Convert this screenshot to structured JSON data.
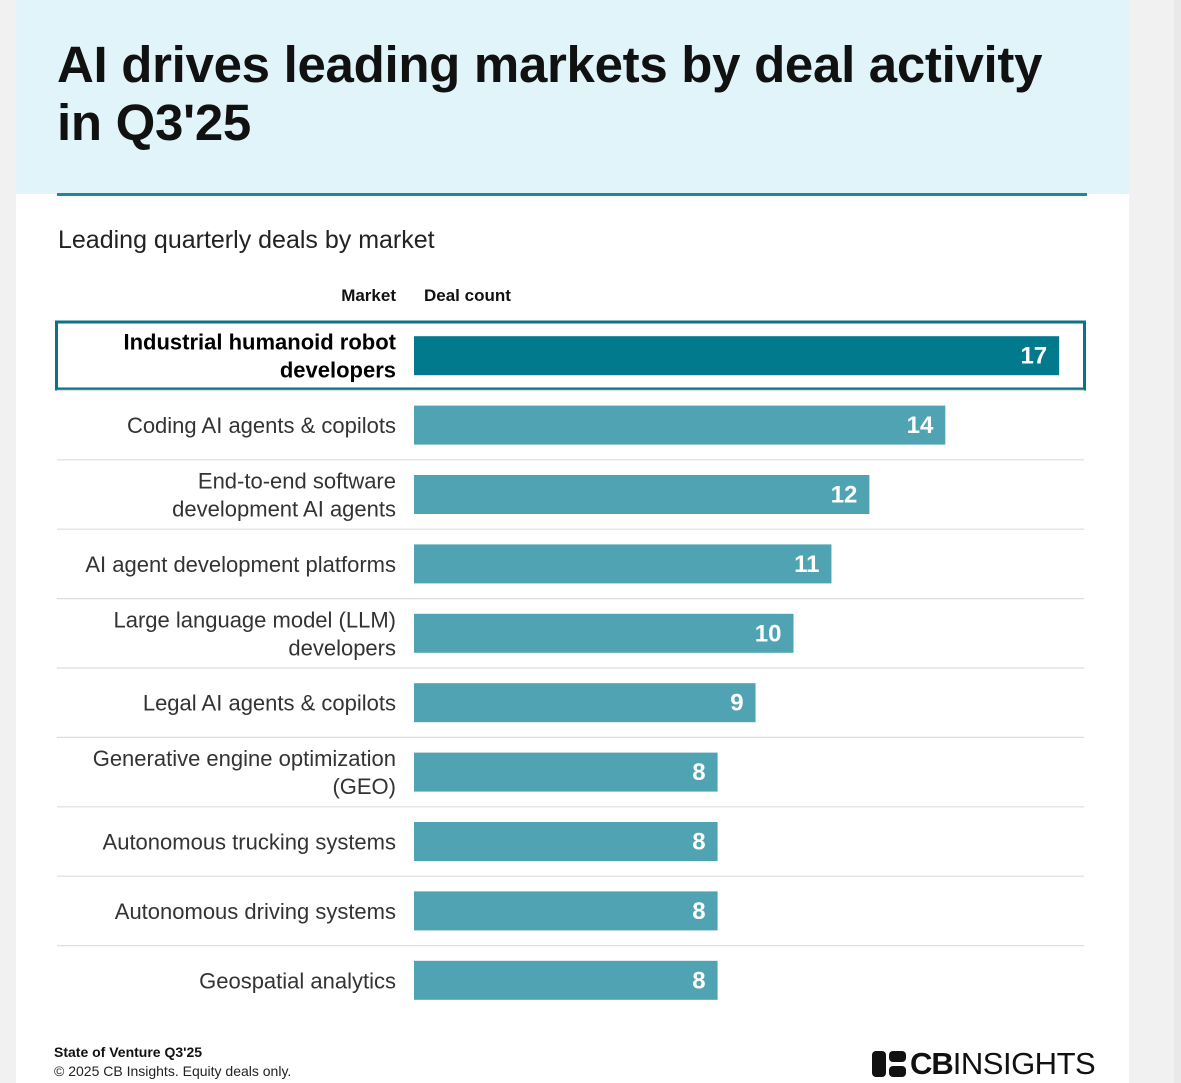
{
  "title": "AI drives leading markets by deal activity in Q3'25",
  "subtitle": "Leading quarterly deals by market",
  "column_headers": {
    "market": "Market",
    "deals": "Deal count"
  },
  "footer": {
    "source": "State of Venture Q3'25",
    "note": "© 2025 CB Insights. Equity deals only."
  },
  "brand": {
    "cb": "CB",
    "insights": "INSIGHTS"
  },
  "colors": {
    "bar": "#4fa3b3",
    "highlight_bar": "#007a8c",
    "highlight_border": "#0b7384",
    "header_band": "#e1f4fa",
    "rule": "#1b8a9c",
    "divider": "#dddddd"
  },
  "chart_data": {
    "type": "bar",
    "orientation": "horizontal",
    "categories": [
      [
        "Industrial humanoid robot",
        "developers"
      ],
      [
        "Coding AI agents & copilots"
      ],
      [
        "End-to-end software",
        "development AI agents"
      ],
      [
        "AI agent development platforms"
      ],
      [
        "Large language model (LLM)",
        "developers"
      ],
      [
        "Legal AI agents & copilots"
      ],
      [
        "Generative engine optimization",
        "(GEO)"
      ],
      [
        "Autonomous trucking systems"
      ],
      [
        "Autonomous driving systems"
      ],
      [
        "Geospatial analytics"
      ]
    ],
    "values": [
      17,
      14,
      12,
      11,
      10,
      9,
      8,
      8,
      8,
      8
    ],
    "highlighted_index": 0,
    "xlim": [
      0,
      17
    ],
    "grid": false,
    "legend": "none",
    "data_labels": "inside-end"
  }
}
